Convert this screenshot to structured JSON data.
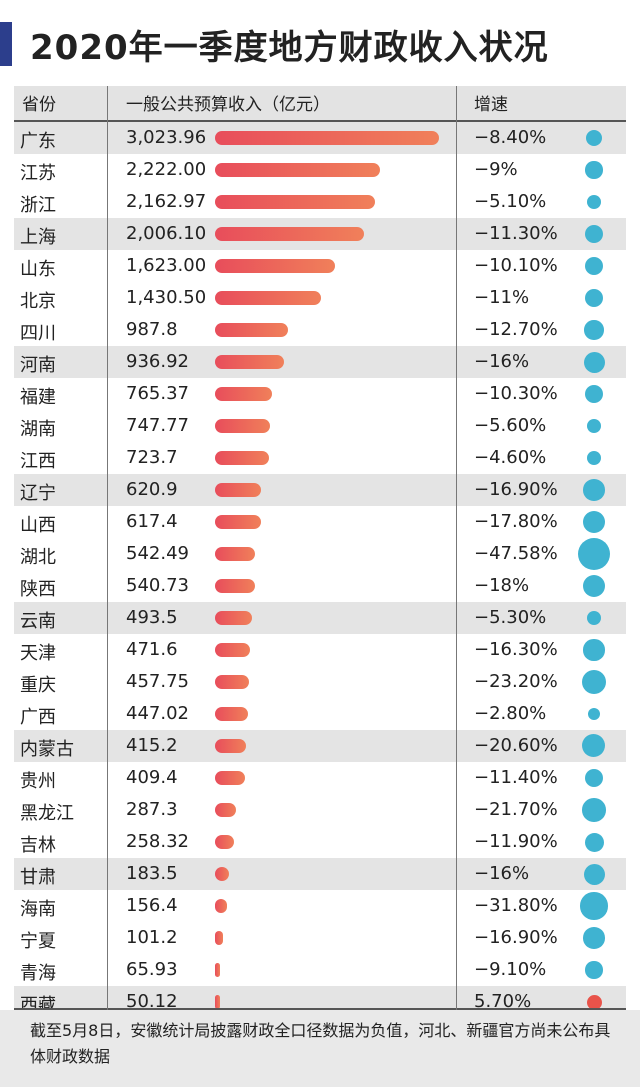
{
  "title": "2020年一季度地方财政收入状况",
  "headers": {
    "province": "省份",
    "revenue": "一般公共预算收入（亿元）",
    "growth": "增速"
  },
  "colors": {
    "bar_start": "#e84d5b",
    "bar_end": "#f0805a",
    "negative_dot": "#3fb3d1",
    "positive_dot": "#e8534a",
    "title_accent": "#2c3e8c"
  },
  "chart_data": {
    "type": "bar",
    "orientation": "horizontal",
    "title": "2020年一季度地方财政收入状况",
    "categories": [
      "广东",
      "江苏",
      "浙江",
      "上海",
      "山东",
      "北京",
      "四川",
      "河南",
      "福建",
      "湖南",
      "江西",
      "辽宁",
      "山西",
      "湖北",
      "陕西",
      "云南",
      "天津",
      "重庆",
      "广西",
      "内蒙古",
      "贵州",
      "黑龙江",
      "吉林",
      "甘肃",
      "海南",
      "宁夏",
      "青海",
      "西藏"
    ],
    "value_labels": [
      "3,023.96",
      "2,222.00",
      "2,162.97",
      "2,006.10",
      "1,623.00",
      "1,430.50",
      "987.8",
      "936.92",
      "765.37",
      "747.77",
      "723.7",
      "620.9",
      "617.4",
      "542.49",
      "540.73",
      "493.5",
      "471.6",
      "457.75",
      "447.02",
      "415.2",
      "409.4",
      "287.3",
      "258.32",
      "183.5",
      "156.4",
      "101.2",
      "65.93",
      "50.12"
    ],
    "values": [
      3023.96,
      2222.0,
      2162.97,
      2006.1,
      1623.0,
      1430.5,
      987.8,
      936.92,
      765.37,
      747.77,
      723.7,
      620.9,
      617.4,
      542.49,
      540.73,
      493.5,
      471.6,
      457.75,
      447.02,
      415.2,
      409.4,
      287.3,
      258.32,
      183.5,
      156.4,
      101.2,
      65.93,
      50.12
    ],
    "growth_labels": [
      "−8.40%",
      "−9%",
      "−5.10%",
      "−11.30%",
      "−10.10%",
      "−11%",
      "−12.70%",
      "−16%",
      "−10.30%",
      "−5.60%",
      "−4.60%",
      "−16.90%",
      "−17.80%",
      "−47.58%",
      "−18%",
      "−5.30%",
      "−16.30%",
      "−23.20%",
      "−2.80%",
      "−20.60%",
      "−11.40%",
      "−21.70%",
      "−11.90%",
      "−16%",
      "−31.80%",
      "−16.90%",
      "−9.10%",
      "5.70%"
    ],
    "growth": [
      -8.4,
      -9,
      -5.1,
      -11.3,
      -10.1,
      -11,
      -12.7,
      -16,
      -10.3,
      -5.6,
      -4.6,
      -16.9,
      -17.8,
      -47.58,
      -18,
      -5.3,
      -16.3,
      -23.2,
      -2.8,
      -20.6,
      -11.4,
      -21.7,
      -11.9,
      -16,
      -31.8,
      -16.9,
      -9.1,
      5.7
    ],
    "shaded_rows": [
      0,
      3,
      7,
      11,
      15,
      19,
      23,
      27
    ]
  },
  "footnote": "截至5月8日，安徽统计局披露财政全口径数据为负值，河北、新疆官方尚未公布具体财政数据"
}
